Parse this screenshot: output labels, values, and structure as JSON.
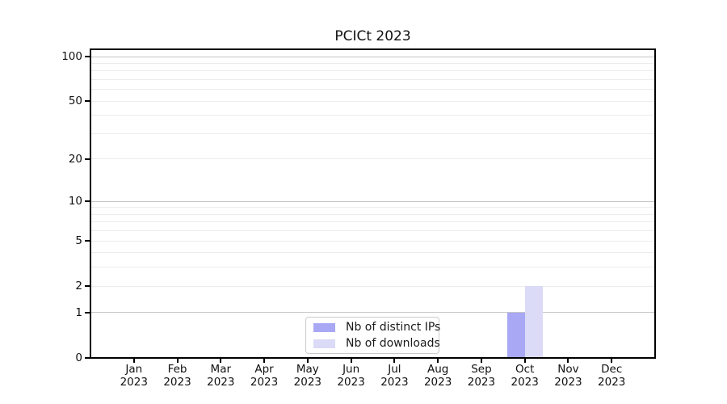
{
  "chart_data": {
    "type": "bar",
    "title": "PCICt 2023",
    "categories": [
      "Jan",
      "Feb",
      "Mar",
      "Apr",
      "May",
      "Jun",
      "Jul",
      "Aug",
      "Sep",
      "Oct",
      "Nov",
      "Dec"
    ],
    "x_year_label": "2023",
    "series": [
      {
        "name": "Nb of distinct IPs",
        "color": "#a8a8f5",
        "values": [
          0,
          0,
          0,
          0,
          0,
          0,
          0,
          0,
          0,
          1,
          0,
          0
        ]
      },
      {
        "name": "Nb of downloads",
        "color": "#dbdbf8",
        "values": [
          0,
          0,
          0,
          0,
          0,
          0,
          0,
          0,
          0,
          2,
          0,
          0
        ]
      }
    ],
    "yscale": "log1p",
    "ylim": [
      0,
      112
    ],
    "ytick_values": [
      0,
      1,
      2,
      5,
      10,
      20,
      50,
      100
    ],
    "ytick_labels": [
      "0",
      "1",
      "2",
      "5",
      "10",
      "20",
      "50",
      "100"
    ],
    "grid": {
      "major_values": [
        1,
        10,
        100
      ],
      "minor_values": [
        2,
        3,
        4,
        5,
        6,
        7,
        8,
        9,
        20,
        30,
        40,
        50,
        60,
        70,
        80,
        90
      ],
      "major_color": "#c6c6c6",
      "minor_color": "#ececec"
    },
    "legend": {
      "position": "bottom-center",
      "entries": [
        "Nb of distinct IPs",
        "Nb of downloads"
      ]
    }
  }
}
